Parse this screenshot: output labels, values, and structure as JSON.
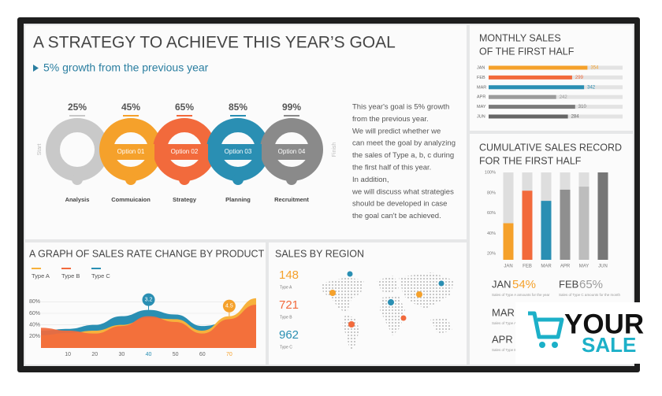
{
  "strategy": {
    "title": "A STRATEGY TO ACHIEVE THIS YEAR’S GOAL",
    "subtitle": "5% growth from the previous year",
    "start": "Start",
    "finish": "Finish",
    "percents": [
      "25%",
      "45%",
      "65%",
      "85%",
      "99%"
    ],
    "ring_colors": [
      "#c9c9c9",
      "#f5a12b",
      "#f26a3c",
      "#2a8fb3",
      "#8a8a8a"
    ],
    "options": [
      "Option 01",
      "Option 02",
      "Option 03",
      "Option 04"
    ],
    "steps": [
      "Analysis",
      "Commuicaion",
      "Strategy",
      "Planning",
      "Recruitment"
    ],
    "paragraph": [
      "This year's goal is 5% growth",
      "from the previous year.",
      "We will predict whether we",
      "can meet the goal by analyzing",
      "the sales of Type a, b, c during",
      "the first half of this year.",
      "In addition,",
      "we will discuss what strategies",
      "should be developed in case",
      "the goal can't be achieved."
    ]
  },
  "monthly": {
    "title": [
      "MONTHLY SALES",
      "OF THE FIRST HALF"
    ],
    "categories": [
      "JAN",
      "FEB",
      "MAR",
      "APR",
      "MAY",
      "JUN"
    ],
    "values": [
      354,
      299,
      342,
      242,
      310,
      284
    ],
    "colors": [
      "#f5a12b",
      "#f26a3c",
      "#2a8fb3",
      "#9b9b9b",
      "#7a7a7a",
      "#666666"
    ],
    "xlim": [
      0,
      480
    ]
  },
  "cumulative": {
    "title": [
      "CUMULATIVE SALES RECORD",
      "FOR THE FIRST HALF"
    ],
    "categories": [
      "JAN",
      "FEB",
      "MAR",
      "APR",
      "MAY",
      "JUN"
    ],
    "values": [
      50,
      82,
      72,
      83,
      86,
      100
    ],
    "colors": [
      "#f5a12b",
      "#f26a3c",
      "#2a8fb3",
      "#8f8f8f",
      "#bdbdbd",
      "#777777"
    ],
    "ylim": [
      14,
      100
    ],
    "yticks": [
      {
        "value": 100,
        "label": "100%"
      },
      {
        "value": 80,
        "label": "80%"
      },
      {
        "value": 60,
        "label": "60%"
      },
      {
        "value": 40,
        "label": "40%"
      },
      {
        "value": 20,
        "label": "20%"
      }
    ],
    "highlights": [
      {
        "month": "JAN",
        "value": "54%",
        "color": "#f5a12b",
        "note": "Sales of Type A amounts for the year"
      },
      {
        "month": "FEB",
        "value": "65%",
        "color": "#9b9b9b",
        "note": "Sales of Type C amounts for the month"
      },
      {
        "month": "MAR",
        "note": "Sales of Type A amounts for the year"
      },
      {
        "month": "APR",
        "note": "Sales of Type B amounts for the year"
      }
    ]
  },
  "graph": {
    "title": "A GRAPH OF SALES RATE CHANGE BY PRODUCT",
    "x": [
      0,
      10,
      20,
      30,
      40,
      50,
      60,
      70,
      80
    ],
    "xlim": [
      0,
      80
    ],
    "ylim": [
      0,
      90
    ],
    "xticks": [
      10,
      20,
      30,
      40,
      50,
      60,
      70
    ],
    "yticks": [
      {
        "value": 80,
        "label": "80%"
      },
      {
        "value": 60,
        "label": "60%"
      },
      {
        "value": 40,
        "label": "40%"
      },
      {
        "value": 20,
        "label": "20%"
      }
    ],
    "series": [
      {
        "name": "Type C",
        "color": "#2a8fb3",
        "values": [
          30,
          33,
          40,
          55,
          66,
          58,
          38,
          45,
          60
        ]
      },
      {
        "name": "Type A",
        "color": "#f7b13c",
        "values": [
          22,
          26,
          30,
          40,
          52,
          50,
          30,
          55,
          86
        ]
      },
      {
        "name": "Type B",
        "color": "#f26a3c",
        "values": [
          35,
          30,
          25,
          38,
          55,
          45,
          25,
          50,
          75
        ]
      }
    ],
    "legend_order": [
      1,
      2,
      0
    ],
    "markers": [
      {
        "x": 40,
        "label": "3.2",
        "color": "#2a8fb3"
      },
      {
        "x": 70,
        "label": "4.5",
        "color": "#f5a12b"
      }
    ]
  },
  "region": {
    "title": "SALES BY REGION",
    "items": [
      {
        "value": "148",
        "label": "Type A",
        "color": "#f5a12b"
      },
      {
        "value": "721",
        "label": "Type B",
        "color": "#f26a3c"
      },
      {
        "value": "962",
        "label": "Type C",
        "color": "#2a8fb3"
      }
    ]
  },
  "logo": {
    "top": "YOUR",
    "bottom": "SALE"
  }
}
